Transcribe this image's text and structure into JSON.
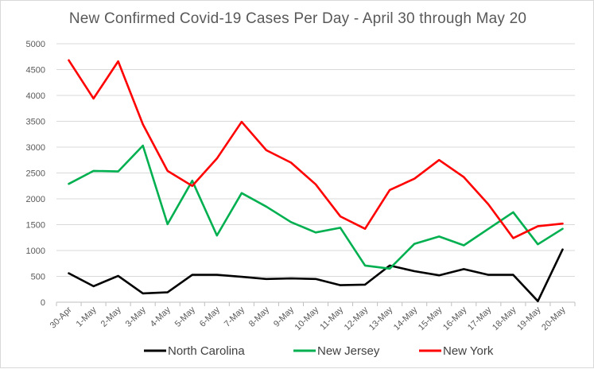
{
  "chart_data": {
    "type": "line",
    "title": "New Confirmed  Covid-19 Cases Per Day - April 30 through May 20",
    "categories": [
      "30-Apr",
      "1-May",
      "2-May",
      "3-May",
      "4-May",
      "5-May",
      "6-May",
      "7-May",
      "8-May",
      "9-May",
      "10-May",
      "11-May",
      "12-May",
      "13-May",
      "14-May",
      "15-May",
      "16-May",
      "17-May",
      "18-May",
      "19-May",
      "20-May"
    ],
    "ylim": [
      0,
      5000
    ],
    "yticks": [
      0,
      500,
      1000,
      1500,
      2000,
      2500,
      3000,
      3500,
      4000,
      4500,
      5000
    ],
    "grid": true,
    "legend_position": "bottom",
    "series": [
      {
        "name": "North Carolina",
        "color": "#000000",
        "values": [
          560,
          310,
          510,
          170,
          190,
          530,
          530,
          490,
          450,
          460,
          450,
          330,
          340,
          710,
          600,
          520,
          640,
          530,
          530,
          20,
          1020
        ]
      },
      {
        "name": "New Jersey",
        "color": "#00b050",
        "values": [
          2290,
          2540,
          2530,
          3030,
          1510,
          2350,
          1290,
          2110,
          1850,
          1550,
          1350,
          1440,
          710,
          650,
          1130,
          1270,
          1100,
          1420,
          1740,
          1120,
          1420
        ]
      },
      {
        "name": "New York",
        "color": "#ff0000",
        "values": [
          4680,
          3940,
          4660,
          3440,
          2540,
          2250,
          2780,
          3490,
          2940,
          2700,
          2280,
          1660,
          1420,
          2170,
          2390,
          2750,
          2420,
          1890,
          1240,
          1470,
          1520
        ]
      }
    ]
  }
}
